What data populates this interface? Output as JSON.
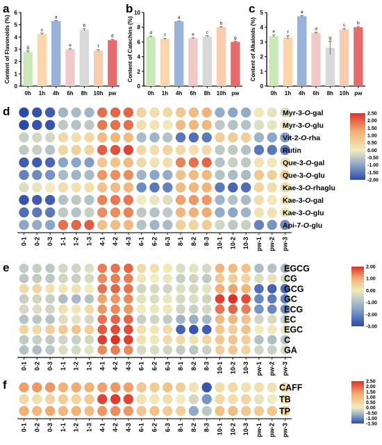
{
  "figure": {
    "panel_letters": [
      "a",
      "b",
      "c",
      "d",
      "e",
      "f"
    ]
  },
  "colors": {
    "bars": [
      "#c9e9b8",
      "#fbd6ad",
      "#98b2d8",
      "#efc9c7",
      "#d9d9d9",
      "#f8ccae",
      "#e46c6c"
    ],
    "scale": [
      "#2c4aa8",
      "#8aa6c8",
      "#f1ecbf",
      "#f1b075",
      "#d8342a"
    ]
  },
  "chart_data": [
    {
      "type": "bar",
      "panel": "a",
      "categories": [
        "0h",
        "1h",
        "4h",
        "6h",
        "8h",
        "10h",
        "pw"
      ],
      "values": [
        2.8,
        4.25,
        5.3,
        3.0,
        4.6,
        2.9,
        3.75
      ],
      "errors": [
        0.08,
        0.06,
        0.05,
        0.06,
        0.07,
        0.06,
        0.06
      ],
      "letters": [
        "g",
        "c",
        "a",
        "e",
        "b",
        "f",
        "d"
      ],
      "ylabel": "Content of Flavonoids (%)",
      "ylim": [
        0,
        6
      ],
      "yticks": [
        0,
        1,
        2,
        3,
        4,
        5,
        6
      ]
    },
    {
      "type": "bar",
      "panel": "b",
      "categories": [
        "0h",
        "1h",
        "4h",
        "6h",
        "8h",
        "10h",
        "pw"
      ],
      "values": [
        6.7,
        6.4,
        8.8,
        6.5,
        6.75,
        8.0,
        6.0
      ],
      "errors": [
        0.08,
        0.08,
        0.06,
        0.08,
        0.08,
        0.08,
        0.07
      ],
      "letters": [
        "d",
        "f",
        "a",
        "e",
        "c",
        "b",
        "g"
      ],
      "ylabel": "Content of Catechins (%)",
      "ylim": [
        0,
        10
      ],
      "yticks": [
        0,
        2,
        4,
        6,
        8,
        10
      ]
    },
    {
      "type": "bar",
      "panel": "c",
      "categories": [
        "0h",
        "1h",
        "4h",
        "6h",
        "8h",
        "10h",
        "pw"
      ],
      "values": [
        3.4,
        3.3,
        4.75,
        3.6,
        2.6,
        3.85,
        4.0
      ],
      "errors": [
        0.08,
        0.12,
        0.05,
        0.06,
        0.45,
        0.06,
        0.06
      ],
      "letters": [
        "e",
        "f",
        "a",
        "d",
        "g",
        "c",
        "b"
      ],
      "ylabel": "Content of Alkaloids (%)",
      "ylim": [
        0,
        5
      ],
      "yticks": [
        0,
        1,
        2,
        3,
        4,
        5
      ]
    },
    {
      "type": "heatmap",
      "panel": "d",
      "columns": [
        "0-1",
        "0-2",
        "0-3",
        "1-1",
        "1-2",
        "1-3",
        "4-1",
        "4-2",
        "4-3",
        "6-1",
        "6-2",
        "6-3",
        "8-1",
        "8-2",
        "8-3",
        "10-1",
        "10-2",
        "10-3",
        "pw-1",
        "pw-2",
        "pw-3"
      ],
      "rows": [
        {
          "label": "Myr-3-",
          "ital": "O",
          "suffix": "-gal",
          "values": [
            -2,
            -1.9,
            -1.8,
            -0.8,
            -0.7,
            -0.8,
            1.9,
            2.0,
            2.0,
            0.5,
            0.3,
            0.4,
            0.8,
            1.0,
            1.2,
            -0.9,
            -1.0,
            -0.9,
            0.1,
            -0.1,
            -0.2
          ]
        },
        {
          "label": "Myr-3-",
          "ital": "O",
          "suffix": "-glu",
          "values": [
            -2,
            -1.9,
            -1.9,
            -0.5,
            -0.6,
            -0.5,
            1.8,
            1.9,
            1.9,
            0.3,
            0.2,
            0.1,
            1.0,
            1.1,
            1.1,
            -0.5,
            -0.6,
            -0.6,
            -0.2,
            -0.1,
            0.0
          ]
        },
        {
          "label": "Vit-2-",
          "ital": "O",
          "suffix": "-rha",
          "values": [
            -0.4,
            -0.3,
            -0.3,
            0.4,
            0.3,
            0.4,
            1.0,
            1.1,
            1.0,
            -0.7,
            -0.8,
            -0.6,
            -1.5,
            -1.6,
            -1.5,
            0.6,
            0.7,
            0.6,
            -0.8,
            -1.0,
            -1.1
          ]
        },
        {
          "label": "Rutin",
          "ital": "",
          "suffix": "",
          "values": [
            -0.5,
            -0.4,
            -0.6,
            0.5,
            0.6,
            0.5,
            2.1,
            2.2,
            2.3,
            0.4,
            0.3,
            0.5,
            0.4,
            0.3,
            0.4,
            -0.5,
            -0.5,
            -0.6,
            -1.5,
            -1.5,
            -1.5
          ]
        },
        {
          "label": "Que-3-",
          "ital": "O",
          "suffix": "-gal",
          "values": [
            -1.8,
            -1.8,
            -1.7,
            -1.0,
            -1.0,
            -1.1,
            0.8,
            0.9,
            1.0,
            0.4,
            0.2,
            0.3,
            1.7,
            1.9,
            2.0,
            -0.6,
            -0.4,
            -0.5,
            0.2,
            0.1,
            0.2
          ]
        },
        {
          "label": "Que-3-",
          "ital": "O",
          "suffix": "-glu",
          "values": [
            -1.4,
            -1.3,
            -1.2,
            -0.7,
            -0.8,
            -0.7,
            1.5,
            1.6,
            1.6,
            -0.8,
            -1.0,
            -0.9,
            0.9,
            1.0,
            1.1,
            -0.6,
            -0.7,
            -0.7,
            0.8,
            0.6,
            0.7
          ]
        },
        {
          "label": "Kae-3-",
          "ital": "O",
          "suffix": "-rhaglu",
          "values": [
            -0.2,
            -0.1,
            0.0,
            0.3,
            0.2,
            0.3,
            0.9,
            1.0,
            1.1,
            -1.3,
            -1.5,
            -1.4,
            1.0,
            1.1,
            1.2,
            -1.5,
            -1.7,
            -1.6,
            0.5,
            0.3,
            0.4
          ]
        },
        {
          "label": "Kae-3-",
          "ital": "O",
          "suffix": "-gal",
          "values": [
            -1.9,
            -1.8,
            -1.8,
            -0.6,
            -0.5,
            -0.6,
            1.7,
            1.8,
            1.8,
            0.0,
            -0.1,
            -0.2,
            1.4,
            1.5,
            1.5,
            -0.8,
            -0.6,
            -0.7,
            0.3,
            0.1,
            0.2
          ]
        },
        {
          "label": "Kae-3-",
          "ital": "O",
          "suffix": "-glu",
          "values": [
            -1.6,
            -1.5,
            -1.5,
            -0.5,
            -0.6,
            -0.4,
            1.6,
            1.6,
            1.7,
            -0.5,
            -0.6,
            -0.5,
            1.1,
            1.2,
            1.3,
            -0.9,
            -1.0,
            -0.8,
            0.2,
            0.2,
            0.1
          ]
        },
        {
          "label": "Api-7-",
          "ital": "O",
          "suffix": "-glu",
          "values": [
            -1.0,
            -0.9,
            -1.0,
            1.9,
            2.0,
            2.1,
            0.9,
            1.0,
            1.1,
            -0.6,
            -0.8,
            -0.7,
            0.6,
            0.5,
            0.7,
            -0.3,
            -0.5,
            -0.4,
            -1.4,
            -1.2,
            -1.3
          ]
        }
      ],
      "legend": {
        "min": -2.0,
        "max": 2.5,
        "ticks": [
          "2.50",
          "2.00",
          "1.50",
          "1.00",
          "0.50",
          "0.00",
          "-0.50",
          "-1.00",
          "-1.50",
          "-2.00"
        ]
      }
    },
    {
      "type": "heatmap",
      "panel": "e",
      "columns": [
        "0-1",
        "0-2",
        "0-3",
        "1-1",
        "1-2",
        "1-3",
        "4-1",
        "4-2",
        "4-3",
        "6-1",
        "6-2",
        "6-3",
        "8-1",
        "8-2",
        "8-3",
        "10-1",
        "10-2",
        "10-3",
        "pw-1",
        "pw-2",
        "pw-3"
      ],
      "rows": [
        {
          "label": "EGCG",
          "values": [
            -0.7,
            -0.6,
            -0.8,
            -0.4,
            -0.5,
            -0.3,
            1.4,
            1.5,
            1.6,
            0.3,
            0.2,
            0.1,
            -0.3,
            -0.2,
            -0.4,
            0.9,
            0.8,
            0.7,
            -1.0,
            -0.9,
            -1.1
          ]
        },
        {
          "label": "CG",
          "values": [
            -0.8,
            -0.7,
            -0.8,
            -0.5,
            -0.6,
            -0.4,
            1.3,
            1.4,
            1.4,
            0.1,
            0.0,
            -0.1,
            -0.6,
            -0.5,
            -0.7,
            0.6,
            0.5,
            0.4,
            -0.3,
            -0.2,
            -0.4
          ]
        },
        {
          "label": "GCG",
          "values": [
            0.3,
            0.4,
            0.2,
            0.1,
            0.2,
            0.0,
            1.5,
            1.6,
            1.5,
            -0.5,
            -0.4,
            -0.5,
            -0.3,
            -0.4,
            -0.2,
            1.0,
            1.1,
            0.9,
            -2.4,
            -2.6,
            -2.5
          ]
        },
        {
          "label": "GC",
          "values": [
            -0.6,
            -0.5,
            -0.6,
            -1.0,
            -1.1,
            -0.9,
            1.1,
            1.2,
            1.3,
            -0.2,
            -0.3,
            -0.1,
            -0.4,
            -0.3,
            -0.5,
            1.9,
            2.0,
            1.8,
            -2.0,
            -2.2,
            -2.1
          ]
        },
        {
          "label": "ECG",
          "values": [
            -0.4,
            -0.3,
            -0.5,
            0.2,
            0.1,
            0.3,
            1.2,
            1.3,
            1.2,
            0.0,
            -0.1,
            0.1,
            -0.5,
            -0.6,
            -0.4,
            1.5,
            1.6,
            1.4,
            -1.8,
            -2.0,
            -1.9
          ]
        },
        {
          "label": "EC",
          "values": [
            -0.9,
            -0.8,
            -0.9,
            -0.3,
            -0.2,
            -0.4,
            1.5,
            1.6,
            1.6,
            -0.6,
            -0.5,
            -0.7,
            -1.2,
            -1.3,
            -1.1,
            0.8,
            0.9,
            0.7,
            -0.5,
            -0.4,
            -0.6
          ]
        },
        {
          "label": "EGC",
          "values": [
            0.4,
            0.3,
            0.5,
            0.6,
            0.7,
            0.5,
            1.7,
            1.8,
            1.8,
            0.2,
            0.1,
            0.3,
            -2.6,
            -2.8,
            -2.7,
            0.6,
            0.5,
            0.7,
            0.0,
            0.1,
            -0.1
          ]
        },
        {
          "label": "C",
          "values": [
            -0.7,
            -0.6,
            -0.7,
            -0.5,
            -0.6,
            -0.4,
            1.9,
            2.0,
            1.9,
            0.2,
            0.1,
            0.3,
            0.3,
            0.2,
            0.4,
            0.6,
            0.7,
            0.5,
            -0.9,
            -1.0,
            -0.8
          ]
        },
        {
          "label": "GA",
          "values": [
            -0.9,
            -1.0,
            -0.8,
            -0.3,
            -0.4,
            -0.2,
            1.3,
            1.4,
            1.3,
            -0.4,
            -0.3,
            -0.5,
            -0.7,
            -0.8,
            -0.6,
            0.5,
            0.6,
            0.4,
            -0.5,
            -0.6,
            -0.4
          ]
        }
      ],
      "legend": {
        "min": -3.0,
        "max": 2.0,
        "ticks": [
          "2.00",
          "1.00",
          "0.00",
          "-1.00",
          "-2.00",
          "-3.00"
        ]
      }
    },
    {
      "type": "heatmap",
      "panel": "f",
      "columns": [
        "0-1",
        "0-2",
        "0-3",
        "1-1",
        "1-2",
        "1-3",
        "4-1",
        "4-2",
        "4-3",
        "6-1",
        "6-2",
        "6-3",
        "8-1",
        "8-2",
        "8-3",
        "10-1",
        "10-2",
        "10-3",
        "pw-1",
        "pw-2",
        "pw-3"
      ],
      "rows": [
        {
          "label": "CAFF",
          "values": [
            1.4,
            1.5,
            1.5,
            1.2,
            1.3,
            1.2,
            1.4,
            1.5,
            1.4,
            0.8,
            0.7,
            0.9,
            0.6,
            0.2,
            -1.4,
            0.3,
            0.4,
            0.2,
            0.3,
            0.2,
            0.4
          ]
        },
        {
          "label": "TB",
          "values": [
            0.4,
            0.3,
            0.5,
            0.6,
            0.5,
            0.7,
            2.3,
            2.4,
            2.3,
            0.2,
            0.1,
            0.3,
            0.0,
            -0.2,
            -0.9,
            0.4,
            0.3,
            0.5,
            -0.1,
            0.0,
            0.1
          ]
        },
        {
          "label": "TP",
          "values": [
            1.2,
            1.1,
            1.3,
            1.1,
            1.2,
            1.0,
            1.5,
            1.6,
            1.5,
            0.8,
            0.9,
            0.7,
            0.6,
            -0.7,
            -0.4,
            0.9,
            1.0,
            0.8,
            0.7,
            0.8,
            0.6
          ]
        }
      ],
      "legend": {
        "min": -1.5,
        "max": 2.5,
        "ticks": [
          "2.50",
          "2.00",
          "1.50",
          "1.00",
          "0.50",
          "0.00",
          "-0.50",
          "-1.00",
          "-1.50"
        ]
      }
    }
  ]
}
